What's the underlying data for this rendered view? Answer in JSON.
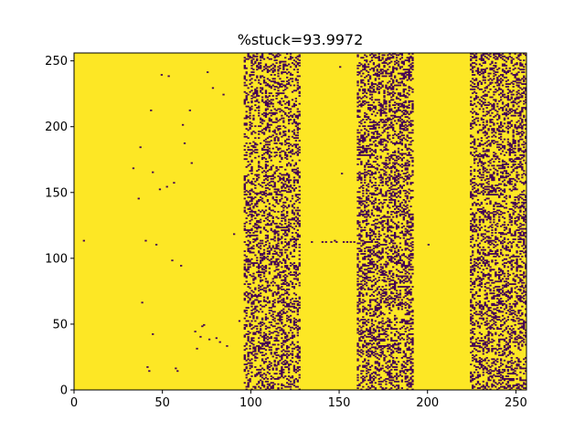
{
  "chart_data": {
    "type": "heatmap",
    "title": "%stuck=93.9972",
    "xlabel": "",
    "ylabel": "",
    "xlim": [
      0,
      256
    ],
    "ylim": [
      0,
      256
    ],
    "grid": false,
    "legend": "none",
    "x_ticks": [
      0,
      50,
      100,
      150,
      200,
      250
    ],
    "y_ticks": [
      0,
      50,
      100,
      150,
      200,
      250
    ],
    "x_tick_labels": [
      "0",
      "50",
      "100",
      "150",
      "200",
      "250"
    ],
    "y_tick_labels": [
      "0",
      "50",
      "100",
      "150",
      "200",
      "250"
    ],
    "stuck_color": "#fde725",
    "unstuck_color": "#440154",
    "stuck_percent": 93.9972,
    "dense_unstuck_bands": [
      {
        "x_start": 96,
        "x_end": 128,
        "density": 0.28
      },
      {
        "x_start": 160,
        "x_end": 192,
        "density": 0.32
      },
      {
        "x_start": 224,
        "x_end": 256,
        "density": 0.3
      }
    ],
    "sparse_unstuck_cells": [
      [
        5,
        113
      ],
      [
        33,
        168
      ],
      [
        36,
        145
      ],
      [
        37,
        184
      ],
      [
        38,
        66
      ],
      [
        40,
        113
      ],
      [
        41,
        17
      ],
      [
        42,
        14
      ],
      [
        43,
        212
      ],
      [
        44,
        165
      ],
      [
        46,
        110
      ],
      [
        48,
        152
      ],
      [
        49,
        239
      ],
      [
        52,
        154
      ],
      [
        53,
        238
      ],
      [
        55,
        98
      ],
      [
        56,
        157
      ],
      [
        57,
        16
      ],
      [
        58,
        14
      ],
      [
        60,
        94
      ],
      [
        61,
        201
      ],
      [
        62,
        187
      ],
      [
        65,
        212
      ],
      [
        66,
        172
      ],
      [
        68,
        44
      ],
      [
        69,
        31
      ],
      [
        71,
        40
      ],
      [
        72,
        48
      ],
      [
        73,
        49
      ],
      [
        75,
        241
      ],
      [
        76,
        38
      ],
      [
        78,
        229
      ],
      [
        80,
        39
      ],
      [
        82,
        36
      ],
      [
        84,
        224
      ],
      [
        86,
        33
      ],
      [
        90,
        118
      ],
      [
        93,
        52
      ],
      [
        134,
        112
      ],
      [
        140,
        112
      ],
      [
        142,
        112
      ],
      [
        145,
        112
      ],
      [
        148,
        112
      ],
      [
        150,
        245
      ],
      [
        152,
        112
      ],
      [
        154,
        112
      ],
      [
        156,
        112
      ],
      [
        158,
        112
      ],
      [
        151,
        164
      ],
      [
        147,
        113
      ],
      [
        44,
        42
      ],
      [
        200,
        110
      ]
    ]
  }
}
